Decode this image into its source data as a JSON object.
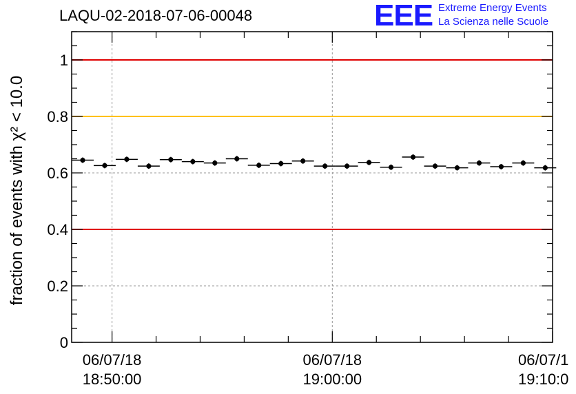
{
  "header": {
    "title": "LAQU-02-2018-07-06-00048",
    "logo_text": "EEE",
    "logo_line1": "Extreme Energy Events",
    "logo_line2": "La Scienza nelle Scuole"
  },
  "colors": {
    "red_line": "#e00000",
    "yellow_line": "#ffc000",
    "grid": "#999999",
    "marker": "#000000",
    "logo": "#1a1aff"
  },
  "chart_data": {
    "type": "scatter",
    "title": "LAQU-02-2018-07-06-00048",
    "ylabel": "fraction of events with χ² < 10.0",
    "ylim": [
      0,
      1.1
    ],
    "yticks": [
      0,
      0.2,
      0.4,
      0.6,
      0.8,
      1
    ],
    "ytick_labels": [
      "0",
      "0.2",
      "0.4",
      "0.6",
      "0.8",
      "1"
    ],
    "xlim": [
      "2018-07-06 18:48:10",
      "2018-07-06 19:10:00"
    ],
    "xticks": [
      {
        "date": "06/07/18",
        "time": "18:50:00",
        "x": "2018-07-06 18:50:00"
      },
      {
        "date": "06/07/18",
        "time": "19:00:00",
        "x": "2018-07-06 19:00:00"
      },
      {
        "date": "06/07/1",
        "time": "19:10:0",
        "x": "2018-07-06 19:10:00"
      }
    ],
    "grid": true,
    "reference_lines": [
      {
        "y": 1.0,
        "color": "red"
      },
      {
        "y": 0.8,
        "color": "yellow"
      },
      {
        "y": 0.4,
        "color": "red"
      }
    ],
    "bin_width_seconds": 60,
    "series": [
      {
        "x": [
          "18:48:40",
          "18:49:40",
          "18:50:40",
          "18:51:40",
          "18:52:40",
          "18:53:40",
          "18:54:40",
          "18:55:40",
          "18:56:40",
          "18:57:40",
          "18:58:40",
          "18:59:40",
          "19:00:40",
          "19:01:40",
          "19:02:40",
          "19:03:40",
          "19:04:40",
          "19:05:40",
          "19:06:40",
          "19:07:40",
          "19:08:40",
          "19:09:40"
        ],
        "y": [
          0.645,
          0.626,
          0.648,
          0.624,
          0.647,
          0.64,
          0.635,
          0.65,
          0.627,
          0.633,
          0.642,
          0.624,
          0.624,
          0.637,
          0.62,
          0.656,
          0.624,
          0.618,
          0.635,
          0.622,
          0.635,
          0.618
        ]
      }
    ]
  }
}
